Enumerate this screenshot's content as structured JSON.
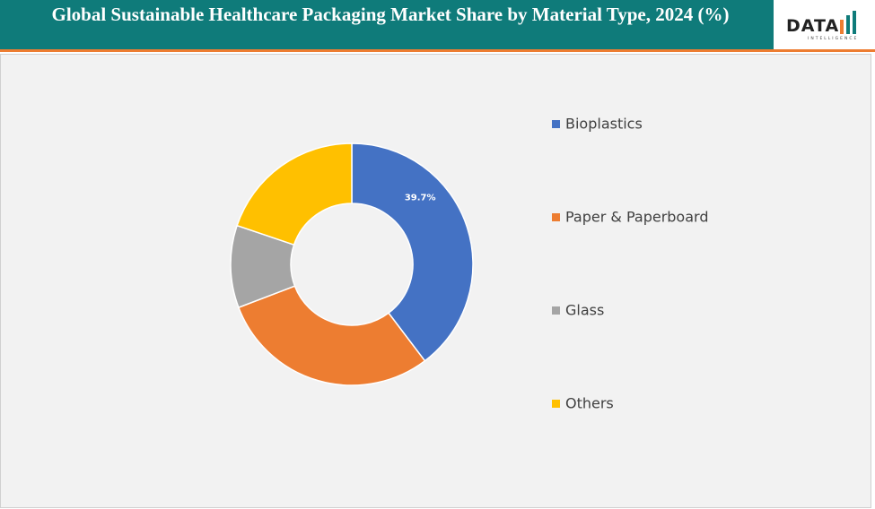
{
  "chart_data": {
    "type": "donut",
    "title": "Global Sustainable Healthcare Packaging Market Share by Material Type, 2024 (%)",
    "categories": [
      "Bioplastics",
      "Paper & Paperboard",
      "Glass",
      "Others"
    ],
    "values": [
      39.7,
      29.5,
      11,
      19.8
    ],
    "value_labels": [
      "39.7%",
      null,
      null,
      null
    ],
    "colors": [
      "#4472c4",
      "#ed7d31",
      "#a5a5a5",
      "#ffc000"
    ],
    "legend": "right"
  },
  "logo": {
    "text": "DATA",
    "subtext": "INTELLIGENCE"
  }
}
